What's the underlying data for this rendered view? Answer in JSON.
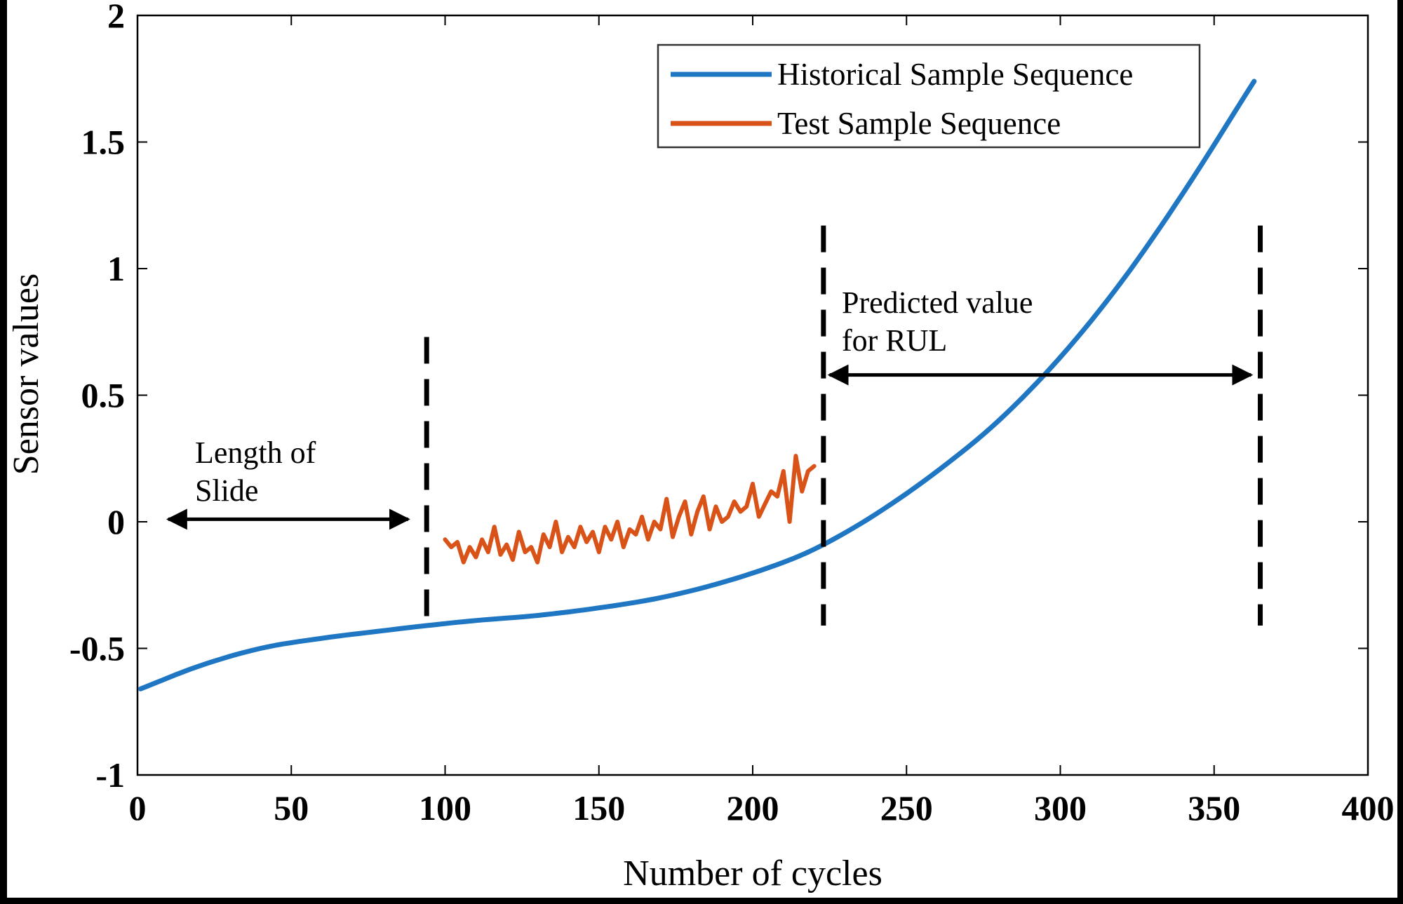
{
  "chart_data": {
    "type": "line",
    "title": "",
    "xlabel": "Number of cycles",
    "ylabel": "Sensor values",
    "xlim": [
      0,
      400
    ],
    "ylim": [
      -1,
      2
    ],
    "x_ticks": [
      0,
      50,
      100,
      150,
      200,
      250,
      300,
      350,
      400
    ],
    "x_tick_labels": [
      "0",
      "50",
      "100",
      "150",
      "200",
      "250",
      "300",
      "350",
      "400"
    ],
    "y_ticks": [
      -1,
      -0.5,
      0,
      0.5,
      1,
      1.5,
      2
    ],
    "y_tick_labels": [
      "-1",
      "-0.5",
      "0",
      "0.5",
      "1",
      "1.5",
      "2"
    ],
    "legend_position": "top-right",
    "series": [
      {
        "name": "Historical Sample Sequence",
        "color": "#1f77c4",
        "x": [
          1,
          20,
          40,
          60,
          80,
          94,
          110,
          130,
          150,
          170,
          190,
          210,
          223,
          240,
          260,
          280,
          300,
          320,
          340,
          363
        ],
        "y": [
          -0.66,
          -0.57,
          -0.5,
          -0.46,
          -0.43,
          -0.41,
          -0.39,
          -0.37,
          -0.34,
          -0.3,
          -0.24,
          -0.16,
          -0.09,
          0.03,
          0.2,
          0.4,
          0.65,
          0.95,
          1.3,
          1.74
        ]
      },
      {
        "name": "Test Sample Sequence",
        "color": "#d95319",
        "x": [
          100,
          102,
          104,
          106,
          108,
          110,
          112,
          114,
          116,
          118,
          120,
          122,
          124,
          126,
          128,
          130,
          132,
          134,
          136,
          138,
          140,
          142,
          144,
          146,
          148,
          150,
          152,
          154,
          156,
          158,
          160,
          162,
          164,
          166,
          168,
          170,
          172,
          174,
          176,
          178,
          180,
          182,
          184,
          186,
          188,
          190,
          192,
          194,
          196,
          198,
          200,
          202,
          204,
          206,
          208,
          210,
          212,
          214,
          216,
          218,
          220
        ],
        "y": [
          -0.07,
          -0.1,
          -0.08,
          -0.16,
          -0.1,
          -0.14,
          -0.07,
          -0.12,
          -0.02,
          -0.13,
          -0.09,
          -0.15,
          -0.04,
          -0.12,
          -0.1,
          -0.16,
          -0.05,
          -0.1,
          0.0,
          -0.12,
          -0.06,
          -0.1,
          -0.02,
          -0.08,
          -0.04,
          -0.12,
          -0.02,
          -0.07,
          0.0,
          -0.1,
          -0.03,
          -0.05,
          0.02,
          -0.07,
          0.0,
          -0.03,
          0.09,
          -0.06,
          0.02,
          0.08,
          -0.05,
          0.04,
          0.1,
          -0.03,
          0.06,
          0.0,
          0.02,
          0.08,
          0.04,
          0.06,
          0.15,
          0.02,
          0.07,
          0.12,
          0.1,
          0.2,
          0.0,
          0.26,
          0.12,
          0.2,
          0.22
        ]
      }
    ],
    "vlines": [
      {
        "x": 94,
        "ymin": -0.42,
        "ymax": 0.73
      },
      {
        "x": 223,
        "ymin": -0.41,
        "ymax": 1.17
      },
      {
        "x": 365,
        "ymin": -0.41,
        "ymax": 1.17
      }
    ],
    "annotations": [
      {
        "text_lines": [
          "Length of",
          "Slide"
        ],
        "arrow": {
          "x_from": 10,
          "x_to": 88,
          "y": 0.01
        }
      },
      {
        "text_lines": [
          "Predicted value",
          "for RUL"
        ],
        "arrow": {
          "x_from": 225,
          "x_to": 362,
          "y": 0.58
        }
      }
    ]
  }
}
